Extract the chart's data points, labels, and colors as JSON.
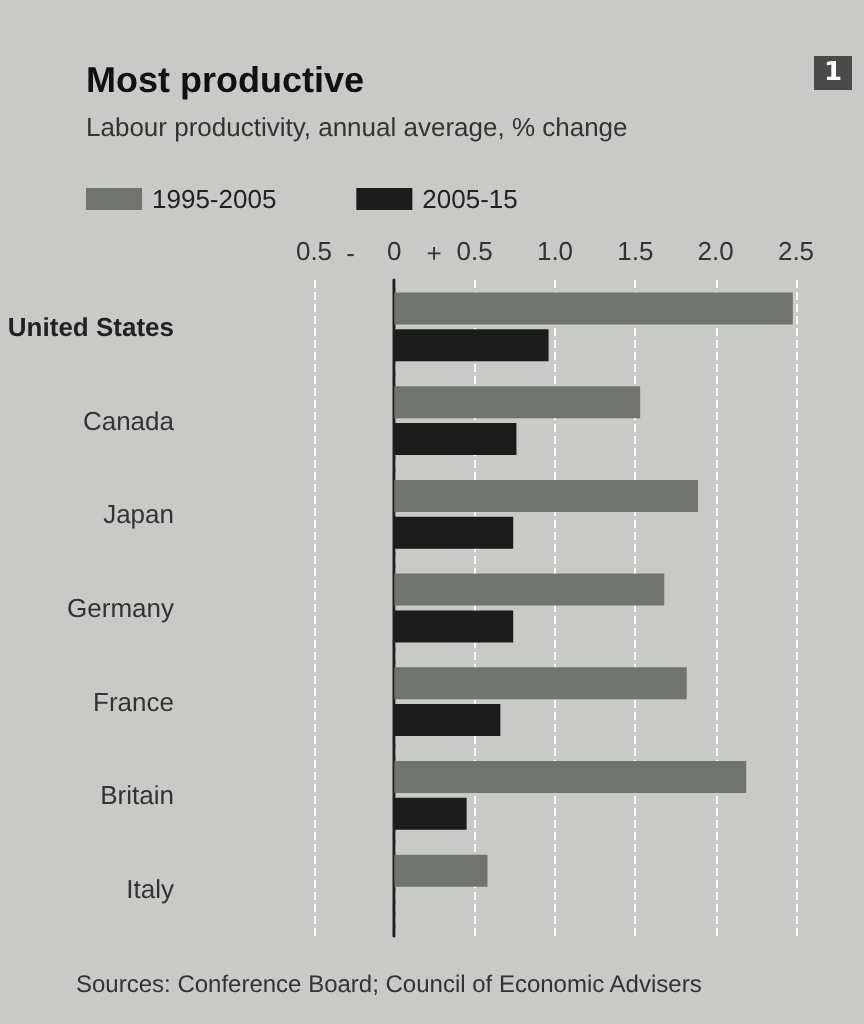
{
  "chart_data": {
    "type": "bar",
    "orientation": "horizontal",
    "title": "Most productive",
    "subtitle": "Labour productivity, annual average, % change",
    "categories": [
      "United States",
      "Canada",
      "Japan",
      "Germany",
      "France",
      "Britain",
      "Italy"
    ],
    "series": [
      {
        "name": "1995-2005",
        "color": "#6f746f",
        "values": [
          2.48,
          1.53,
          1.89,
          1.68,
          1.82,
          2.19,
          0.58
        ]
      },
      {
        "name": "2005-15",
        "color": "#1c1c1c",
        "values": [
          0.96,
          0.76,
          0.74,
          0.74,
          0.66,
          0.45,
          0
        ]
      }
    ],
    "xlim": [
      -0.5,
      2.5
    ],
    "xticks": [
      {
        "value": -0.5,
        "label": "0.5"
      },
      {
        "value": 0,
        "label": "0"
      },
      0.5,
      {
        "value": 1,
        "label": "1.0"
      },
      1.5,
      {
        "value": 2,
        "label": "2.0"
      },
      2.5
    ],
    "grid": "x",
    "legend": "top left",
    "annotations": [
      "1",
      "-",
      "+",
      "Sources: Conference Board; Council of Economic Advisers"
    ]
  }
}
